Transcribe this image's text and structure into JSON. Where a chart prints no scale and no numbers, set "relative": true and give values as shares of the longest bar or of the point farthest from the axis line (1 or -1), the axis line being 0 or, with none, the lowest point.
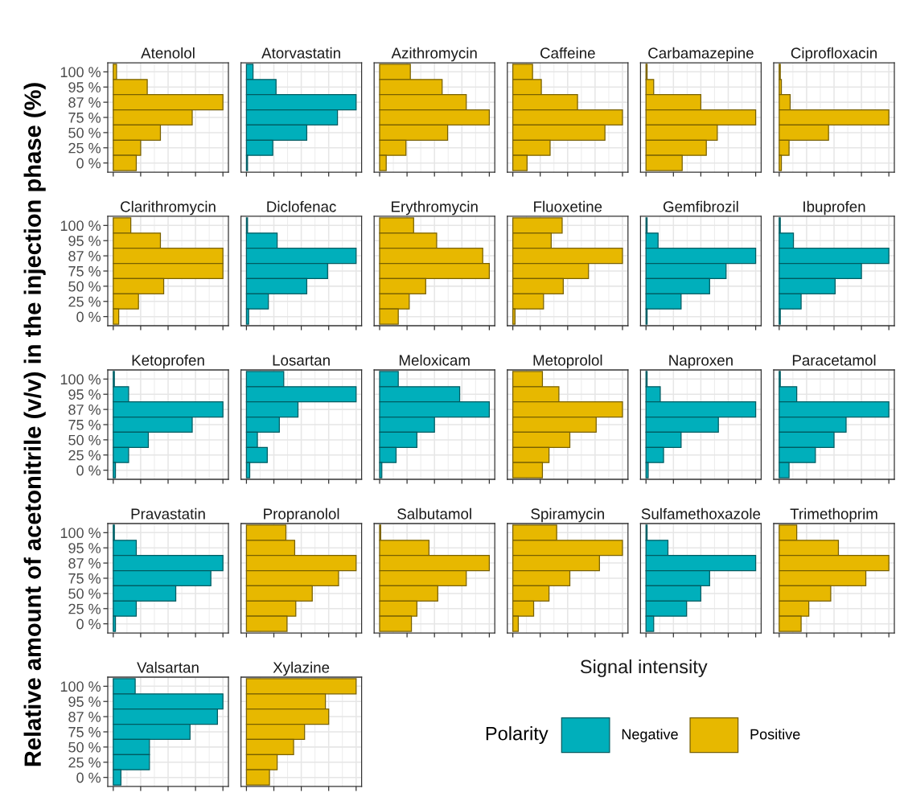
{
  "chart_data": [
    {
      "type": "bar",
      "orientation": "horizontal",
      "relative": true,
      "title": "Atenolol",
      "categories": [
        "100 %",
        "95 %",
        "87 %",
        "75 %",
        "50 %",
        "25 %",
        "0 %"
      ],
      "series": [
        {
          "name": "Positive",
          "color": "#e7b800",
          "values": [
            0.03,
            0.31,
            1,
            0.72,
            0.43,
            0.25,
            0.21
          ]
        }
      ],
      "grid": true,
      "tick_labels": "y"
    },
    {
      "type": "bar",
      "orientation": "horizontal",
      "relative": true,
      "title": "Atorvastatin",
      "categories": [
        "100 %",
        "95 %",
        "87 %",
        "75 %",
        "50 %",
        "25 %",
        "0 %"
      ],
      "series": [
        {
          "name": "Negative",
          "color": "#00afbb",
          "values": [
            0.06,
            0.27,
            1,
            0.83,
            0.55,
            0.24,
            0.01
          ]
        }
      ],
      "grid": true,
      "tick_labels": false
    },
    {
      "type": "bar",
      "orientation": "horizontal",
      "relative": true,
      "title": "Azithromycin",
      "categories": [
        "100 %",
        "95 %",
        "87 %",
        "75 %",
        "50 %",
        "25 %",
        "0 %"
      ],
      "series": [
        {
          "name": "Positive",
          "color": "#e7b800",
          "values": [
            0.28,
            0.57,
            0.79,
            1,
            0.62,
            0.24,
            0.06
          ]
        }
      ],
      "grid": true,
      "tick_labels": false
    },
    {
      "type": "bar",
      "orientation": "horizontal",
      "relative": true,
      "title": "Caffeine",
      "categories": [
        "100 %",
        "95 %",
        "87 %",
        "75 %",
        "50 %",
        "25 %",
        "0 %"
      ],
      "series": [
        {
          "name": "Positive",
          "color": "#e7b800",
          "values": [
            0.18,
            0.26,
            0.59,
            1,
            0.84,
            0.34,
            0.13
          ]
        }
      ],
      "grid": true,
      "tick_labels": false
    },
    {
      "type": "bar",
      "orientation": "horizontal",
      "relative": true,
      "title": "Carbamazepine",
      "categories": [
        "100 %",
        "95 %",
        "87 %",
        "75 %",
        "50 %",
        "25 %",
        "0 %"
      ],
      "series": [
        {
          "name": "Positive",
          "color": "#e7b800",
          "values": [
            0.01,
            0.07,
            0.5,
            1,
            0.65,
            0.55,
            0.33
          ]
        }
      ],
      "grid": true,
      "tick_labels": false
    },
    {
      "type": "bar",
      "orientation": "horizontal",
      "relative": true,
      "title": "Ciprofloxacin",
      "categories": [
        "100 %",
        "95 %",
        "87 %",
        "75 %",
        "50 %",
        "25 %",
        "0 %"
      ],
      "series": [
        {
          "name": "Positive",
          "color": "#e7b800",
          "values": [
            0.01,
            0.02,
            0.1,
            1,
            0.45,
            0.09,
            0.02
          ]
        }
      ],
      "grid": true,
      "tick_labels": false
    },
    {
      "type": "bar",
      "orientation": "horizontal",
      "relative": true,
      "title": "Clarithromycin",
      "categories": [
        "100 %",
        "95 %",
        "87 %",
        "75 %",
        "50 %",
        "25 %",
        "0 %"
      ],
      "series": [
        {
          "name": "Positive",
          "color": "#e7b800",
          "values": [
            0.16,
            0.43,
            1,
            1,
            0.46,
            0.23,
            0.05
          ]
        }
      ],
      "grid": true,
      "tick_labels": "y"
    },
    {
      "type": "bar",
      "orientation": "horizontal",
      "relative": true,
      "title": "Diclofenac",
      "categories": [
        "100 %",
        "95 %",
        "87 %",
        "75 %",
        "50 %",
        "25 %",
        "0 %"
      ],
      "series": [
        {
          "name": "Negative",
          "color": "#00afbb",
          "values": [
            0.01,
            0.28,
            1,
            0.74,
            0.55,
            0.2,
            0.02
          ]
        }
      ],
      "grid": true,
      "tick_labels": false
    },
    {
      "type": "bar",
      "orientation": "horizontal",
      "relative": true,
      "title": "Erythromycin",
      "categories": [
        "100 %",
        "95 %",
        "87 %",
        "75 %",
        "50 %",
        "25 %",
        "0 %"
      ],
      "series": [
        {
          "name": "Positive",
          "color": "#e7b800",
          "values": [
            0.31,
            0.52,
            0.94,
            1,
            0.42,
            0.27,
            0.17
          ]
        }
      ],
      "grid": true,
      "tick_labels": false
    },
    {
      "type": "bar",
      "orientation": "horizontal",
      "relative": true,
      "title": "Fluoxetine",
      "categories": [
        "100 %",
        "95 %",
        "87 %",
        "75 %",
        "50 %",
        "25 %",
        "0 %"
      ],
      "series": [
        {
          "name": "Positive",
          "color": "#e7b800",
          "values": [
            0.45,
            0.35,
            1,
            0.69,
            0.46,
            0.28,
            0.02
          ]
        }
      ],
      "grid": true,
      "tick_labels": false
    },
    {
      "type": "bar",
      "orientation": "horizontal",
      "relative": true,
      "title": "Gemfibrozil",
      "categories": [
        "100 %",
        "95 %",
        "87 %",
        "75 %",
        "50 %",
        "25 %",
        "0 %"
      ],
      "series": [
        {
          "name": "Negative",
          "color": "#00afbb",
          "values": [
            0.01,
            0.11,
            1,
            0.73,
            0.58,
            0.32,
            0.01
          ]
        }
      ],
      "grid": true,
      "tick_labels": false
    },
    {
      "type": "bar",
      "orientation": "horizontal",
      "relative": true,
      "title": "Ibuprofen",
      "categories": [
        "100 %",
        "95 %",
        "87 %",
        "75 %",
        "50 %",
        "25 %",
        "0 %"
      ],
      "series": [
        {
          "name": "Negative",
          "color": "#00afbb",
          "values": [
            0.01,
            0.13,
            1,
            0.75,
            0.51,
            0.2,
            0.01
          ]
        }
      ],
      "grid": true,
      "tick_labels": false
    },
    {
      "type": "bar",
      "orientation": "horizontal",
      "relative": true,
      "title": "Ketoprofen",
      "ylabel": "Relative amount of acetonitrile (v/v) in the injection phase (%)",
      "categories": [
        "100 %",
        "95 %",
        "87 %",
        "75 %",
        "50 %",
        "25 %",
        "0 %"
      ],
      "series": [
        {
          "name": "Negative",
          "color": "#00afbb",
          "values": [
            0.01,
            0.14,
            1,
            0.72,
            0.32,
            0.14,
            0.02
          ]
        }
      ],
      "grid": true,
      "tick_labels": "y"
    },
    {
      "type": "bar",
      "orientation": "horizontal",
      "relative": true,
      "title": "Losartan",
      "categories": [
        "100 %",
        "95 %",
        "87 %",
        "75 %",
        "50 %",
        "25 %",
        "0 %"
      ],
      "series": [
        {
          "name": "Negative",
          "color": "#00afbb",
          "values": [
            0.34,
            1,
            0.47,
            0.3,
            0.1,
            0.19,
            0.03
          ]
        }
      ],
      "grid": true,
      "tick_labels": false
    },
    {
      "type": "bar",
      "orientation": "horizontal",
      "relative": true,
      "title": "Meloxicam",
      "categories": [
        "100 %",
        "95 %",
        "87 %",
        "75 %",
        "50 %",
        "25 %",
        "0 %"
      ],
      "series": [
        {
          "name": "Negative",
          "color": "#00afbb",
          "values": [
            0.17,
            0.73,
            1,
            0.5,
            0.34,
            0.15,
            0.02
          ]
        }
      ],
      "grid": true,
      "tick_labels": false
    },
    {
      "type": "bar",
      "orientation": "horizontal",
      "relative": true,
      "title": "Metoprolol",
      "categories": [
        "100 %",
        "95 %",
        "87 %",
        "75 %",
        "50 %",
        "25 %",
        "0 %"
      ],
      "series": [
        {
          "name": "Positive",
          "color": "#e7b800",
          "values": [
            0.27,
            0.42,
            1,
            0.76,
            0.52,
            0.33,
            0.27
          ]
        }
      ],
      "grid": true,
      "tick_labels": false
    },
    {
      "type": "bar",
      "orientation": "horizontal",
      "relative": true,
      "title": "Naproxen",
      "categories": [
        "100 %",
        "95 %",
        "87 %",
        "75 %",
        "50 %",
        "25 %",
        "0 %"
      ],
      "series": [
        {
          "name": "Negative",
          "color": "#00afbb",
          "values": [
            0.01,
            0.13,
            1,
            0.66,
            0.32,
            0.16,
            0.02
          ]
        }
      ],
      "grid": true,
      "tick_labels": false
    },
    {
      "type": "bar",
      "orientation": "horizontal",
      "relative": true,
      "title": "Paracetamol",
      "categories": [
        "100 %",
        "95 %",
        "87 %",
        "75 %",
        "50 %",
        "25 %",
        "0 %"
      ],
      "series": [
        {
          "name": "Negative",
          "color": "#00afbb",
          "values": [
            0.01,
            0.16,
            1,
            0.61,
            0.5,
            0.33,
            0.09
          ]
        }
      ],
      "grid": true,
      "tick_labels": false
    },
    {
      "type": "bar",
      "orientation": "horizontal",
      "relative": true,
      "title": "Pravastatin",
      "categories": [
        "100 %",
        "95 %",
        "87 %",
        "75 %",
        "50 %",
        "25 %",
        "0 %"
      ],
      "series": [
        {
          "name": "Negative",
          "color": "#00afbb",
          "values": [
            0.01,
            0.21,
            1,
            0.89,
            0.57,
            0.21,
            0.02
          ]
        }
      ],
      "grid": true,
      "tick_labels": "y"
    },
    {
      "type": "bar",
      "orientation": "horizontal",
      "relative": true,
      "title": "Propranolol",
      "categories": [
        "100 %",
        "95 %",
        "87 %",
        "75 %",
        "50 %",
        "25 %",
        "0 %"
      ],
      "series": [
        {
          "name": "Positive",
          "color": "#e7b800",
          "values": [
            0.36,
            0.44,
            1,
            0.84,
            0.6,
            0.45,
            0.37
          ]
        }
      ],
      "grid": true,
      "tick_labels": false
    },
    {
      "type": "bar",
      "orientation": "horizontal",
      "relative": true,
      "title": "Salbutamol",
      "categories": [
        "100 %",
        "95 %",
        "87 %",
        "75 %",
        "50 %",
        "25 %",
        "0 %"
      ],
      "series": [
        {
          "name": "Positive",
          "color": "#e7b800",
          "values": [
            0.01,
            0.45,
            1,
            0.79,
            0.53,
            0.34,
            0.29
          ]
        }
      ],
      "grid": true,
      "tick_labels": false
    },
    {
      "type": "bar",
      "orientation": "horizontal",
      "relative": true,
      "title": "Spiramycin",
      "categories": [
        "100 %",
        "95 %",
        "87 %",
        "75 %",
        "50 %",
        "25 %",
        "0 %"
      ],
      "series": [
        {
          "name": "Positive",
          "color": "#e7b800",
          "values": [
            0.4,
            1,
            0.79,
            0.52,
            0.33,
            0.19,
            0.05
          ]
        }
      ],
      "grid": true,
      "tick_labels": false
    },
    {
      "type": "bar",
      "orientation": "horizontal",
      "relative": true,
      "title": "Sulfamethoxazole",
      "categories": [
        "100 %",
        "95 %",
        "87 %",
        "75 %",
        "50 %",
        "25 %",
        "0 %"
      ],
      "series": [
        {
          "name": "Negative",
          "color": "#00afbb",
          "values": [
            0.01,
            0.2,
            1,
            0.58,
            0.5,
            0.37,
            0.07
          ]
        }
      ],
      "grid": true,
      "tick_labels": false
    },
    {
      "type": "bar",
      "orientation": "horizontal",
      "relative": true,
      "title": "Trimethoprim",
      "categories": [
        "100 %",
        "95 %",
        "87 %",
        "75 %",
        "50 %",
        "25 %",
        "0 %"
      ],
      "series": [
        {
          "name": "Positive",
          "color": "#e7b800",
          "values": [
            0.16,
            0.54,
            1,
            0.79,
            0.47,
            0.27,
            0.2
          ]
        }
      ],
      "grid": true,
      "tick_labels": false
    },
    {
      "type": "bar",
      "orientation": "horizontal",
      "relative": true,
      "title": "Valsartan",
      "categories": [
        "100 %",
        "95 %",
        "87 %",
        "75 %",
        "50 %",
        "25 %",
        "0 %"
      ],
      "series": [
        {
          "name": "Negative",
          "color": "#00afbb",
          "values": [
            0.2,
            1,
            0.95,
            0.7,
            0.33,
            0.33,
            0.07
          ]
        }
      ],
      "grid": true,
      "tick_labels": "y"
    },
    {
      "type": "bar",
      "orientation": "horizontal",
      "relative": true,
      "title": "Xylazine",
      "legend": "right",
      "legend_title": "Polarity",
      "categories": [
        "100 %",
        "95 %",
        "87 %",
        "75 %",
        "50 %",
        "25 %",
        "0 %"
      ],
      "series": [
        {
          "name": "Positive",
          "color": "#e7b800",
          "values": [
            1,
            0.72,
            0.75,
            0.53,
            0.43,
            0.28,
            0.21
          ]
        }
      ],
      "grid": true,
      "tick_labels": false
    },
    {
      "type": "other",
      "title": "Signal intensity"
    }
  ]
}
